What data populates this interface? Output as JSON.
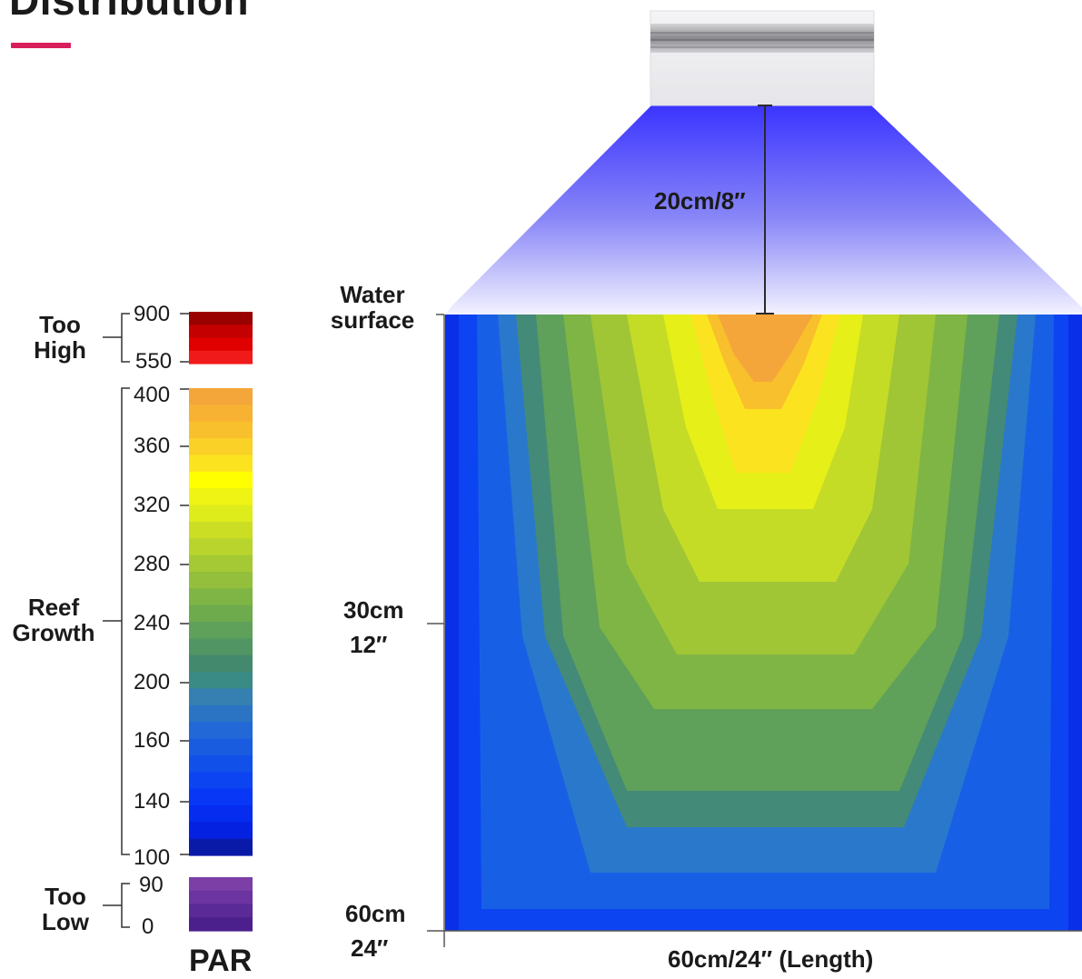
{
  "title": "Distribution",
  "fixture": {
    "distance_label": "20cm/8″"
  },
  "tank": {
    "surface_label_line1": "Water",
    "surface_label_line2": "surface",
    "mid_depth_cm": "30cm",
    "mid_depth_in": "12″",
    "bottom_depth_cm": "60cm",
    "bottom_depth_in": "24″",
    "length_label": "60cm/24″ (Length)"
  },
  "legend": {
    "unit": "PAR",
    "groups": [
      {
        "label_line1": "Too",
        "label_line2": "High",
        "range": [
          550,
          900
        ],
        "ticks": [
          "900",
          "550"
        ]
      },
      {
        "label_line1": "Reef",
        "label_line2": "Growth",
        "range": [
          100,
          400
        ],
        "ticks": [
          "400",
          "360",
          "320",
          "280",
          "240",
          "200",
          "160",
          "140",
          "100"
        ]
      },
      {
        "label_line1": "Too",
        "label_line2": "Low",
        "range": [
          0,
          90
        ],
        "ticks": [
          "90",
          "0"
        ]
      }
    ],
    "colors": {
      "too_high": [
        "#990000",
        "#c40000",
        "#e00000",
        "#f01a1a"
      ],
      "reef": [
        "#f5a63a",
        "#f7b233",
        "#f8c02c",
        "#fad126",
        "#fce320",
        "#ffff00",
        "#f0f414",
        "#dfec1c",
        "#ccde24",
        "#b9d42c",
        "#a5c934",
        "#93bf3c",
        "#7fb544",
        "#6eab4c",
        "#5fa05a",
        "#519564",
        "#43896e",
        "#3a8a86",
        "#3580b0",
        "#2b74c4",
        "#2268d6",
        "#1a5ce0",
        "#1250ea",
        "#0c44f2",
        "#0838f5",
        "#062cf0",
        "#0420e0",
        "#0a1aa8"
      ],
      "too_low": [
        "#7c3fa6",
        "#6b34a0",
        "#5a2a96",
        "#4b1f8c"
      ]
    }
  }
}
